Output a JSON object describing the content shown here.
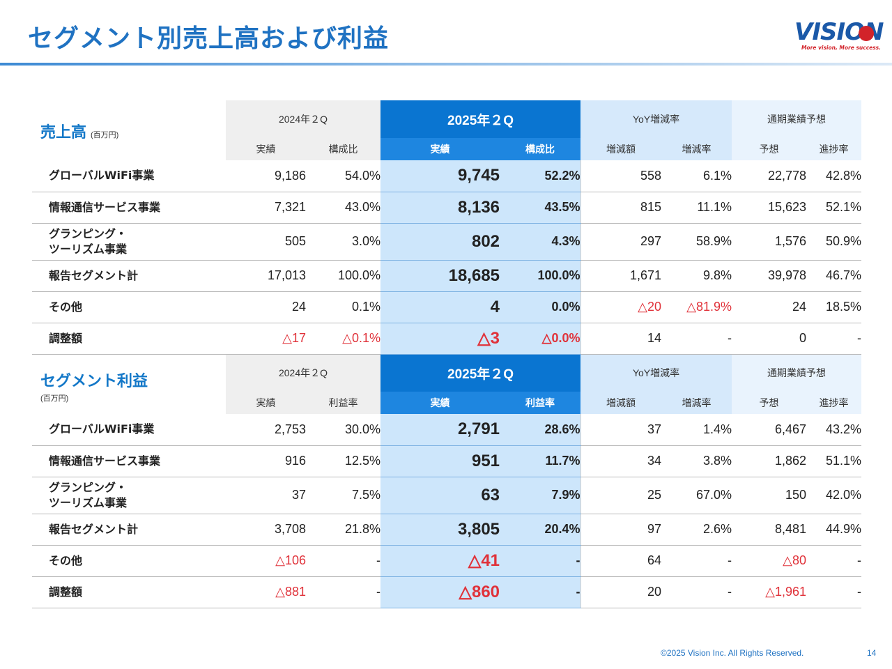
{
  "header": {
    "title": "セグメント別売上高および利益",
    "logo_text": "VISION",
    "logo_tagline": "More vision, More success."
  },
  "colors": {
    "accent": "#1f72c2",
    "highlight_header": "#0a75d1",
    "highlight_cell": "#cde6fb",
    "negative": "#e0323a"
  },
  "sales": {
    "title": "売上高",
    "unit": "(百万円)",
    "group_prev": "2024年２Q",
    "group_cur": "2025年２Q",
    "group_yoy": "YoY増減率",
    "group_fy": "通期業績予想",
    "sub": [
      "実績",
      "構成比",
      "実績",
      "構成比",
      "増減額",
      "増減率",
      "予想",
      "進捗率"
    ],
    "rows": [
      {
        "label": "グローバルWiFi事業",
        "v": [
          "9,186",
          "54.0%",
          "9,745",
          "52.2%",
          "558",
          "6.1%",
          "22,778",
          "42.8%"
        ]
      },
      {
        "label": "情報通信サービス事業",
        "v": [
          "7,321",
          "43.0%",
          "8,136",
          "43.5%",
          "815",
          "11.1%",
          "15,623",
          "52.1%"
        ]
      },
      {
        "label": "グランピング・",
        "label2": "ツーリズム事業",
        "v": [
          "505",
          "3.0%",
          "802",
          "4.3%",
          "297",
          "58.9%",
          "1,576",
          "50.9%"
        ]
      },
      {
        "label": "報告セグメント計",
        "v": [
          "17,013",
          "100.0%",
          "18,685",
          "100.0%",
          "1,671",
          "9.8%",
          "39,978",
          "46.7%"
        ]
      },
      {
        "label": "その他",
        "v": [
          "24",
          "0.1%",
          "4",
          "0.0%",
          "△20",
          "△81.9%",
          "24",
          "18.5%"
        ]
      },
      {
        "label": "調整額",
        "v": [
          "△17",
          "△0.1%",
          "△3",
          "△0.0%",
          "14",
          "-",
          "0",
          "-"
        ]
      }
    ]
  },
  "profit": {
    "title": "セグメント利益",
    "unit": "(百万円)",
    "group_prev": "2024年２Q",
    "group_cur": "2025年２Q",
    "group_yoy": "YoY増減率",
    "group_fy": "通期業績予想",
    "sub": [
      "実績",
      "利益率",
      "実績",
      "利益率",
      "増減額",
      "増減率",
      "予想",
      "進捗率"
    ],
    "rows": [
      {
        "label": "グローバルWiFi事業",
        "v": [
          "2,753",
          "30.0%",
          "2,791",
          "28.6%",
          "37",
          "1.4%",
          "6,467",
          "43.2%"
        ]
      },
      {
        "label": "情報通信サービス事業",
        "v": [
          "916",
          "12.5%",
          "951",
          "11.7%",
          "34",
          "3.8%",
          "1,862",
          "51.1%"
        ]
      },
      {
        "label": "グランピング・",
        "label2": "ツーリズム事業",
        "v": [
          "37",
          "7.5%",
          "63",
          "7.9%",
          "25",
          "67.0%",
          "150",
          "42.0%"
        ]
      },
      {
        "label": "報告セグメント計",
        "v": [
          "3,708",
          "21.8%",
          "3,805",
          "20.4%",
          "97",
          "2.6%",
          "8,481",
          "44.9%"
        ]
      },
      {
        "label": "その他",
        "v": [
          "△106",
          "-",
          "△41",
          "-",
          "64",
          "-",
          "△80",
          "-"
        ]
      },
      {
        "label": "調整額",
        "v": [
          "△881",
          "-",
          "△860",
          "-",
          "20",
          "-",
          "△1,961",
          "-"
        ]
      }
    ]
  },
  "footer": {
    "copyright": "©2025 Vision Inc. All Rights Reserved.",
    "page": "14"
  }
}
